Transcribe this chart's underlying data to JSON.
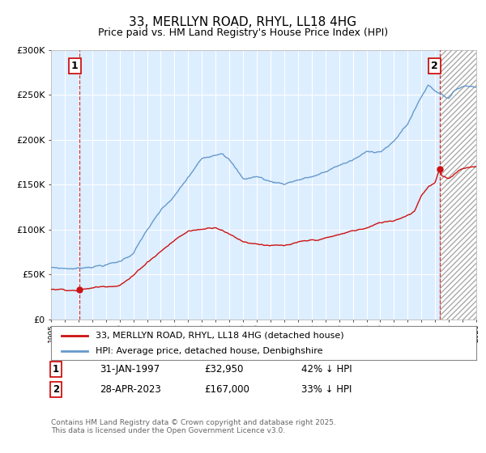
{
  "title_line1": "33, MERLLYN ROAD, RHYL, LL18 4HG",
  "title_line2": "Price paid vs. HM Land Registry's House Price Index (HPI)",
  "background_color": "#ffffff",
  "plot_bg_color": "#ddeeff",
  "hatch_bg_color": "#ffffff",
  "grid_color": "#ffffff",
  "hpi_color": "#6699cc",
  "price_color": "#cc1111",
  "marker_color": "#cc1111",
  "sale1_date_num": 1997.08,
  "sale1_price": 32950,
  "sale1_label": "1",
  "sale2_date_num": 2023.33,
  "sale2_price": 167000,
  "sale2_label": "2",
  "xmin": 1995,
  "xmax": 2026,
  "ymin": 0,
  "ymax": 300000,
  "yticks": [
    0,
    50000,
    100000,
    150000,
    200000,
    250000,
    300000
  ],
  "ytick_labels": [
    "£0",
    "£50K",
    "£100K",
    "£150K",
    "£200K",
    "£250K",
    "£300K"
  ],
  "legend_line1": "33, MERLLYN ROAD, RHYL, LL18 4HG (detached house)",
  "legend_line2": "HPI: Average price, detached house, Denbighshire",
  "note1_label": "1",
  "note1_date": "31-JAN-1997",
  "note1_price": "£32,950",
  "note1_hpi": "42% ↓ HPI",
  "note2_label": "2",
  "note2_date": "28-APR-2023",
  "note2_price": "£167,000",
  "note2_hpi": "33% ↓ HPI",
  "copyright": "Contains HM Land Registry data © Crown copyright and database right 2025.\nThis data is licensed under the Open Government Licence v3.0."
}
